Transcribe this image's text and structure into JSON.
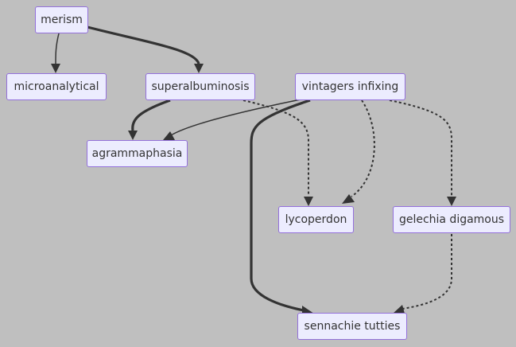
{
  "nodes": {
    "merism": "merism",
    "microanalytical": "microanalytical",
    "superalbuminosis": "superalbuminosis",
    "vintagers_infixing": "vintagers infixing",
    "agrammaphasia": "agrammaphasia",
    "lycoperdon": "lycoperdon",
    "gelechia_digamous": "gelechia digamous",
    "sennachie_tutties": "sennachie tutties"
  },
  "edges": [
    {
      "from": "merism",
      "to": "microanalytical",
      "style": "normal"
    },
    {
      "from": "merism",
      "to": "superalbuminosis",
      "style": "thick"
    },
    {
      "from": "superalbuminosis",
      "to": "agrammaphasia",
      "style": "thick"
    },
    {
      "from": "superalbuminosis",
      "to": "lycoperdon",
      "style": "dotted"
    },
    {
      "from": "vintagers_infixing",
      "to": "agrammaphasia",
      "style": "normal"
    },
    {
      "from": "vintagers_infixing",
      "to": "lycoperdon",
      "style": "dotted"
    },
    {
      "from": "vintagers_infixing",
      "to": "gelechia_digamous",
      "style": "dotted"
    },
    {
      "from": "vintagers_infixing",
      "to": "sennachie_tutties",
      "style": "thick"
    },
    {
      "from": "gelechia_digamous",
      "to": "sennachie_tutties",
      "style": "dotted"
    }
  ],
  "colors": {
    "background": "#bfbfbf",
    "node_fill": "#ececfe",
    "node_border": "#9370db",
    "edge": "#333333",
    "text": "#333333"
  }
}
